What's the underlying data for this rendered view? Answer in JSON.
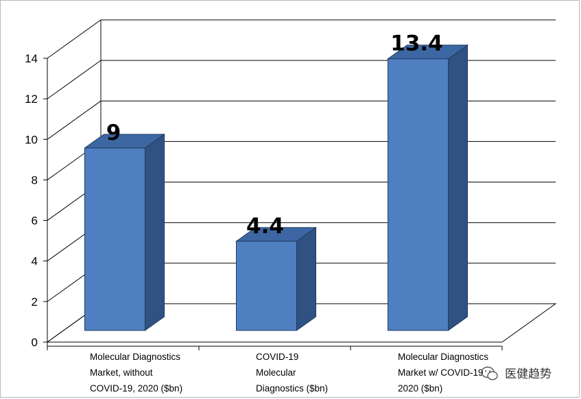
{
  "chart_data": {
    "type": "bar",
    "style": "3d",
    "categories": [
      [
        "Molecular Diagnostics",
        "Market, without",
        "COVID-19, 2020 ($bn)"
      ],
      [
        "COVID-19",
        "Molecular",
        "Diagnostics ($bn)"
      ],
      [
        "Molecular Diagnostics",
        "Market w/ COVID-19",
        "2020 ($bn)"
      ]
    ],
    "values": [
      9,
      4.4,
      13.4
    ],
    "data_labels": [
      "9",
      "4.4",
      "13.4"
    ],
    "ylim": [
      0,
      14
    ],
    "yticks": [
      0,
      2,
      4,
      6,
      8,
      10,
      12,
      14
    ],
    "grid": true,
    "bar_color": "#4f7fc0",
    "bar_side_color": "#2f5282",
    "bar_top_color": "#3c67a3",
    "grid_color": "#000000"
  },
  "watermark": {
    "text": "医健趋势",
    "icon": "wechat-icon"
  }
}
